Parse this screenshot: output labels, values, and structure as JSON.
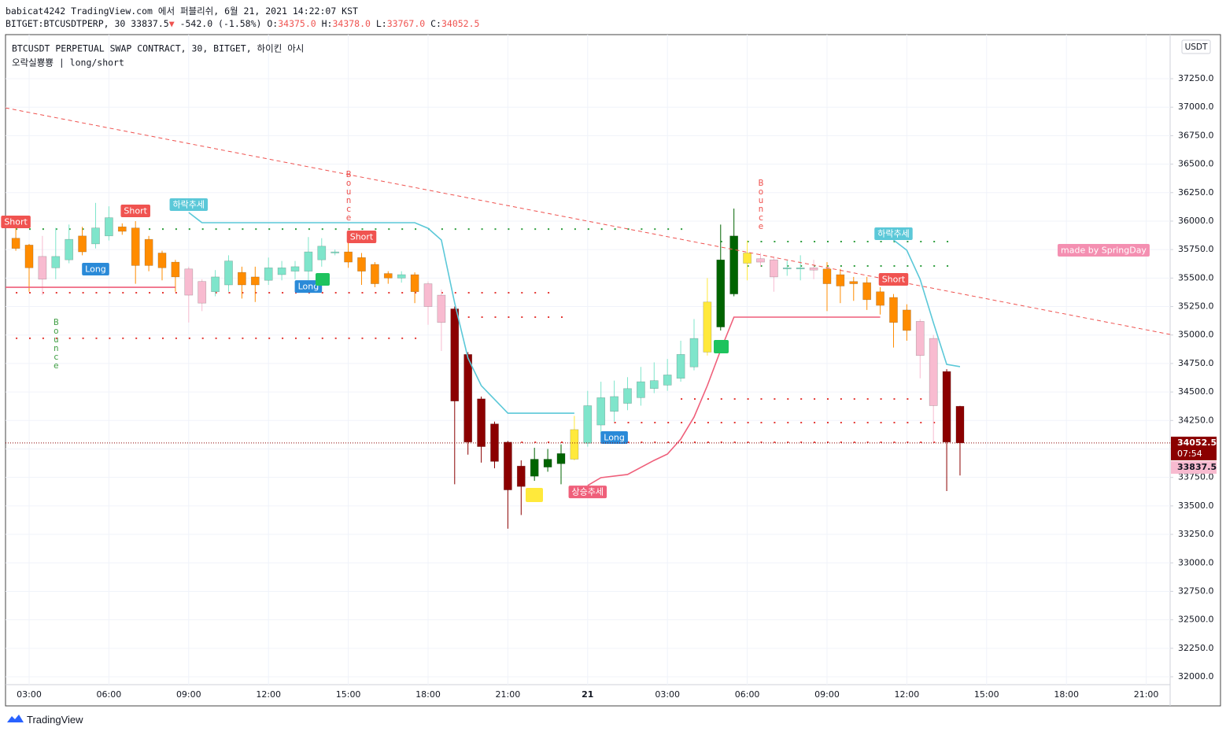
{
  "header": {
    "published": "babicat4242 TradingView.com 에서 퍼블리쉬, 6월 21, 2021 14:22:07 KST",
    "quote": [
      {
        "text": "BITGET:BTCUSDTPERP, 30 33837.5",
        "color": "#131722"
      },
      {
        "text": "▼",
        "color": "#ef5350"
      },
      {
        "text": " -542.0 (-1.58%) ",
        "color": "#131722"
      },
      {
        "text": "O:",
        "color": "#131722"
      },
      {
        "text": "34375.0",
        "color": "#ef5350"
      },
      {
        "text": " H:",
        "color": "#131722"
      },
      {
        "text": "34378.0",
        "color": "#ef5350"
      },
      {
        "text": " L:",
        "color": "#131722"
      },
      {
        "text": "33767.0",
        "color": "#ef5350"
      },
      {
        "text": " C:",
        "color": "#131722"
      },
      {
        "text": "34052.5",
        "color": "#ef5350"
      }
    ]
  },
  "footer": "TradingView",
  "chart_data": {
    "type": "candlestick",
    "legend_lines": [
      "BTCUSDT PERPETUAL SWAP CONTRACT, 30, BITGET, 하이킨 아시",
      "오락실뿅뿅 | long/short"
    ],
    "currency": "USDT",
    "grid": true,
    "xlim": [
      4.225,
      91.8
    ],
    "xticks": [
      {
        "value": 6,
        "label": "03:00"
      },
      {
        "value": 12,
        "label": "06:00"
      },
      {
        "value": 18,
        "label": "09:00"
      },
      {
        "value": 24,
        "label": "12:00"
      },
      {
        "value": 30,
        "label": "15:00"
      },
      {
        "value": 36,
        "label": "18:00"
      },
      {
        "value": 42,
        "label": "21:00"
      },
      {
        "value": 48,
        "label": "21"
      },
      {
        "value": 54,
        "label": "03:00"
      },
      {
        "value": 60,
        "label": "06:00"
      },
      {
        "value": 66,
        "label": "09:00"
      },
      {
        "value": 72,
        "label": "12:00"
      },
      {
        "value": 78,
        "label": "15:00"
      },
      {
        "value": 84,
        "label": "18:00"
      },
      {
        "value": 90,
        "label": "21:00"
      }
    ],
    "ylim": [
      31931,
      37637
    ],
    "yticks": [
      {
        "value": 32000,
        "label": "32000.0"
      },
      {
        "value": 32250,
        "label": "32250.0"
      },
      {
        "value": 32500,
        "label": "32500.0"
      },
      {
        "value": 32750,
        "label": "32750.0"
      },
      {
        "value": 33000,
        "label": "33000.0"
      },
      {
        "value": 33250,
        "label": "33250.0"
      },
      {
        "value": 33500,
        "label": "33500.0"
      },
      {
        "value": 33750,
        "label": "33750.0"
      },
      {
        "value": 34000,
        "label": "34000.0"
      },
      {
        "value": 34250,
        "label": "34250.0"
      },
      {
        "value": 34500,
        "label": "34500.0"
      },
      {
        "value": 34750,
        "label": "34750.0"
      },
      {
        "value": 35000,
        "label": "35000.0"
      },
      {
        "value": 35250,
        "label": "35250.0"
      },
      {
        "value": 35500,
        "label": "35500.0"
      },
      {
        "value": 35750,
        "label": "35750.0"
      },
      {
        "value": 36000,
        "label": "36000.0"
      },
      {
        "value": 36250,
        "label": "36250.0"
      },
      {
        "value": 36500,
        "label": "36500.0"
      },
      {
        "value": 36750,
        "label": "36750.0"
      },
      {
        "value": 37000,
        "label": "37000.0"
      },
      {
        "value": 37250,
        "label": "37250.0"
      }
    ],
    "x": [
      5,
      6,
      7,
      8,
      9,
      10,
      11,
      12,
      13,
      14,
      15,
      16,
      17,
      18,
      19,
      20,
      21,
      22,
      23,
      24,
      25,
      26,
      27,
      28,
      29,
      30,
      31,
      32,
      33,
      34,
      35,
      36,
      37,
      38,
      39,
      40,
      41,
      42,
      43,
      44,
      45,
      46,
      47,
      48,
      49,
      50,
      51,
      52,
      53,
      54,
      55,
      56,
      57,
      58,
      59,
      60,
      61,
      62,
      63,
      64,
      65,
      66,
      67,
      68,
      69,
      70,
      71,
      72,
      73,
      74,
      75,
      76
    ],
    "open": [
      35850,
      35790,
      35690,
      35590,
      35660,
      35870,
      35800,
      35870,
      35950,
      35940,
      35840,
      35720,
      35640,
      35580,
      35470,
      35380,
      35440,
      35550,
      35510,
      35480,
      35530,
      35560,
      35560,
      35660,
      35720,
      35730,
      35680,
      35620,
      35540,
      35500,
      35530,
      35450,
      35350,
      35230,
      34830,
      34440,
      34220,
      34060,
      33850,
      33760,
      33840,
      33870,
      33910,
      34050,
      34210,
      34330,
      34400,
      34450,
      34530,
      34560,
      34620,
      34720,
      34850,
      35070,
      35360,
      35720,
      35670,
      35660,
      35580,
      35580,
      35590,
      35580,
      35530,
      35470,
      35460,
      35380,
      35330,
      35220,
      35120,
      34970,
      34680,
      34375
    ],
    "high": [
      35940,
      35800,
      35870,
      35940,
      35970,
      35950,
      36160,
      36130,
      35980,
      36000,
      35870,
      35740,
      35660,
      35600,
      35490,
      35570,
      35700,
      35600,
      35600,
      35680,
      35650,
      35650,
      35860,
      35850,
      35750,
      35900,
      35720,
      35640,
      35560,
      35560,
      35550,
      35470,
      35400,
      35250,
      34850,
      34460,
      34240,
      34070,
      33900,
      34010,
      34000,
      34040,
      34290,
      34510,
      34590,
      34600,
      34630,
      34720,
      34760,
      34790,
      34950,
      35140,
      35500,
      35970,
      36110,
      35830,
      35720,
      35690,
      35660,
      35700,
      35660,
      35640,
      35580,
      35510,
      35510,
      35420,
      35360,
      35270,
      35140,
      35000,
      34700,
      34378
    ],
    "low": [
      35740,
      35380,
      35350,
      35490,
      35630,
      35700,
      35760,
      35830,
      35880,
      35450,
      35560,
      35480,
      35380,
      35110,
      35210,
      35340,
      35380,
      35320,
      35290,
      35440,
      35480,
      35490,
      35480,
      35600,
      35700,
      35590,
      35440,
      35420,
      35450,
      35460,
      35280,
      35090,
      34860,
      33690,
      33950,
      33880,
      33830,
      33300,
      33420,
      33720,
      33800,
      33690,
      33900,
      34020,
      34130,
      34240,
      34340,
      34380,
      34490,
      34510,
      34590,
      34690,
      34820,
      35040,
      35340,
      35480,
      35600,
      35380,
      35520,
      35480,
      35490,
      35210,
      35280,
      35300,
      35220,
      35180,
      34890,
      34950,
      34620,
      34060,
      33630,
      33767
    ],
    "close": [
      35760,
      35590,
      35490,
      35690,
      35840,
      35730,
      35940,
      36030,
      35910,
      35610,
      35610,
      35590,
      35510,
      35350,
      35280,
      35510,
      35650,
      35440,
      35440,
      35590,
      35590,
      35600,
      35730,
      35780,
      35730,
      35640,
      35560,
      35450,
      35500,
      35530,
      35380,
      35250,
      35110,
      34420,
      34060,
      34020,
      33890,
      33640,
      33670,
      33910,
      33910,
      33960,
      34170,
      34380,
      34450,
      34460,
      34530,
      34590,
      34600,
      34650,
      34830,
      34970,
      35290,
      35660,
      35870,
      35630,
      35640,
      35510,
      35590,
      35590,
      35570,
      35450,
      35430,
      35450,
      35310,
      35260,
      35110,
      35040,
      34820,
      34380,
      34060,
      34052.5
    ],
    "palette": {
      "t": "#7fe5cb",
      "o": "#ff8c00",
      "p": "#f8bbd0",
      "r": "#8b0000",
      "g": "#006400",
      "y": "#ffe93b"
    },
    "candle_colors": [
      "o",
      "o",
      "p",
      "t",
      "t",
      "o",
      "t",
      "t",
      "o",
      "o",
      "o",
      "o",
      "o",
      "p",
      "p",
      "t",
      "t",
      "o",
      "o",
      "t",
      "t",
      "t",
      "t",
      "t",
      "t",
      "o",
      "o",
      "o",
      "o",
      "t",
      "o",
      "p",
      "p",
      "r",
      "r",
      "r",
      "r",
      "r",
      "r",
      "g",
      "g",
      "g",
      "y",
      "t",
      "t",
      "t",
      "t",
      "t",
      "t",
      "t",
      "t",
      "t",
      "y",
      "g",
      "g",
      "y",
      "p",
      "p",
      "t",
      "t",
      "p",
      "o",
      "o",
      "o",
      "o",
      "o",
      "o",
      "o",
      "p",
      "p",
      "r",
      "r"
    ],
    "lines": [
      {
        "color": "#ef5f7a",
        "x": [
          4.225,
          17
        ],
        "values": [
          35419,
          35419
        ]
      },
      {
        "color": "#5bc8d8",
        "x": [
          18,
          19,
          35,
          36,
          37,
          38,
          39,
          40,
          42,
          47
        ],
        "values": [
          36076,
          35986,
          35986,
          35937,
          35834,
          35281,
          34798,
          34556,
          34314,
          34314
        ]
      },
      {
        "color": "#ef5f7a",
        "x": [
          48,
          49,
          51,
          53,
          54,
          55,
          56,
          57,
          58,
          59,
          70
        ],
        "values": [
          33679,
          33748,
          33776,
          33900,
          33955,
          34086,
          34280,
          34556,
          34867,
          35157,
          35157
        ]
      },
      {
        "color": "#5bc8d8",
        "x": [
          71,
          72,
          73,
          74,
          75,
          76
        ],
        "values": [
          35834,
          35744,
          35489,
          35108,
          34742,
          34722
        ]
      }
    ],
    "trendline": {
      "color": "#ef5350",
      "x": [
        4.225,
        91.8
      ],
      "values": [
        36994,
        35005
      ]
    },
    "levels": [
      {
        "color": "#2e9e3e",
        "value": 35930,
        "x": [
          5,
          56
        ]
      },
      {
        "color": "#e53935",
        "value": 35371,
        "x": [
          5,
          46
        ]
      },
      {
        "color": "#e53935",
        "value": 34971,
        "x": [
          5,
          36
        ]
      },
      {
        "color": "#e53935",
        "value": 35157,
        "x": [
          38,
          47
        ]
      },
      {
        "color": "#2e9e3e",
        "value": 35820,
        "x": [
          58,
          76
        ]
      },
      {
        "color": "#2e9e3e",
        "value": 35606,
        "x": [
          58,
          76
        ]
      },
      {
        "color": "#e53935",
        "value": 34059,
        "x": [
          43,
          75
        ]
      },
      {
        "color": "#e53935",
        "value": 34231,
        "x": [
          48,
          75
        ]
      },
      {
        "color": "#e53935",
        "value": 34439,
        "x": [
          55,
          75
        ]
      }
    ],
    "labels": [
      {
        "text": "Short",
        "x": 5,
        "value": 35993,
        "color": "#f05350"
      },
      {
        "text": "Short",
        "x": 14,
        "value": 36090,
        "color": "#f05350"
      },
      {
        "text": "Long",
        "x": 11,
        "value": 35578,
        "color": "#2a8ad8"
      },
      {
        "text": "하락추세",
        "x": 18,
        "value": 36145,
        "color": "#5bc8d8"
      },
      {
        "text": "Long",
        "x": 27,
        "value": 35426,
        "color": "#2a8ad8"
      },
      {
        "text": "Short",
        "x": 31,
        "value": 35862,
        "color": "#f05350"
      },
      {
        "text": "Long",
        "x": 50,
        "value": 34100,
        "color": "#2a8ad8"
      },
      {
        "text": "상승추세",
        "x": 48,
        "value": 33623,
        "color": "#ef5f7a"
      },
      {
        "text": "하락추세",
        "x": 71,
        "value": 35889,
        "color": "#5bc8d8"
      },
      {
        "text": "Short",
        "x": 71,
        "value": 35489,
        "color": "#f05350"
      },
      {
        "text": "made by SpringDay",
        "x": 86.8,
        "value": 35744,
        "color": "#f48fb1"
      }
    ],
    "vertical_labels": [
      {
        "text": "Bounce",
        "x": 8,
        "value": 35157,
        "color": "#43a047"
      },
      {
        "text": "Bounce",
        "x": 30,
        "value": 36456,
        "color": "#ef5350"
      },
      {
        "text": "Bounce",
        "x": 61,
        "value": 36380,
        "color": "#ef5350"
      }
    ],
    "price_labels": [
      {
        "value": 34052.5,
        "countdown": "07:54",
        "color": "#8b0000",
        "text_color": "#ffffff"
      },
      {
        "value": 33837.5,
        "color": "#f8bbd0",
        "text_color": "#131722"
      }
    ]
  }
}
